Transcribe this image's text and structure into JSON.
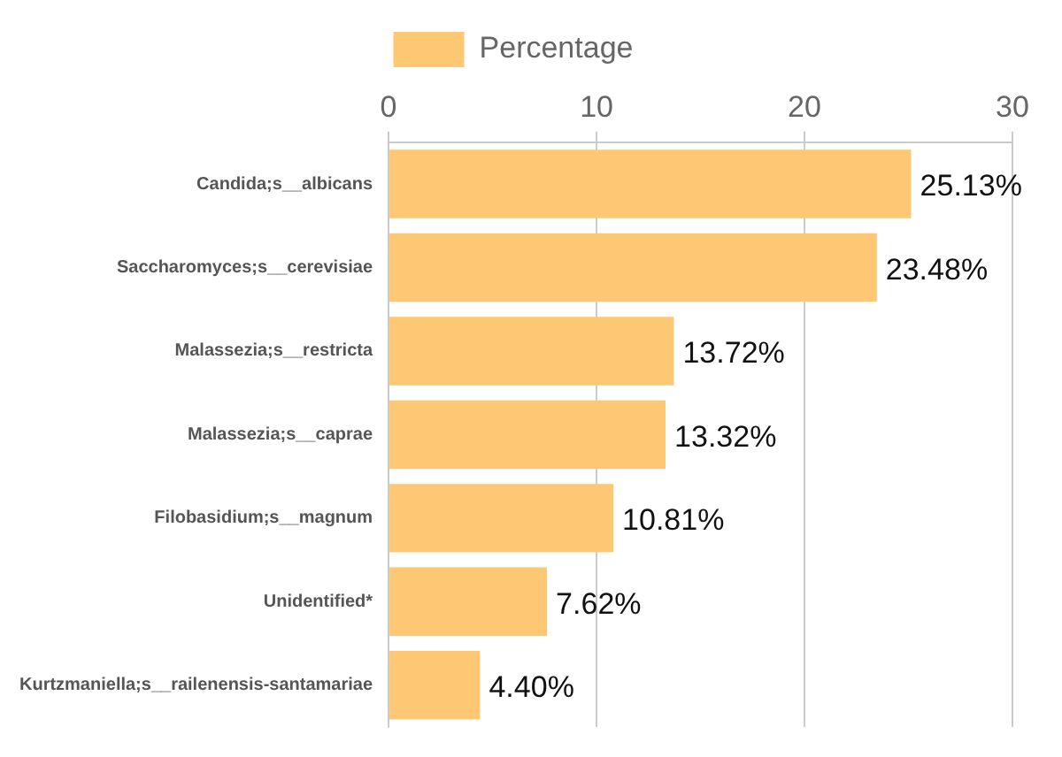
{
  "chart_data": {
    "type": "bar",
    "orientation": "horizontal",
    "categories": [
      "Candida;s__albicans",
      "Saccharomyces;s__cerevisiae",
      "Malassezia;s__restricta",
      "Malassezia;s__caprae",
      "Filobasidium;s__magnum",
      "Unidentified*",
      "Kurtzmaniella;s__railenensis-santamariae"
    ],
    "series": [
      {
        "name": "Percentage",
        "color": "#fec773",
        "values": [
          25.13,
          23.48,
          13.72,
          13.32,
          10.81,
          7.62,
          4.4
        ],
        "value_labels": [
          "25.13%",
          "23.48%",
          "13.72%",
          "13.32%",
          "10.81%",
          "7.62%",
          "4.40%"
        ]
      }
    ],
    "xlim": [
      0,
      30
    ],
    "xticks": [
      0,
      10,
      20,
      30
    ],
    "grid": "x",
    "legend": "top"
  }
}
